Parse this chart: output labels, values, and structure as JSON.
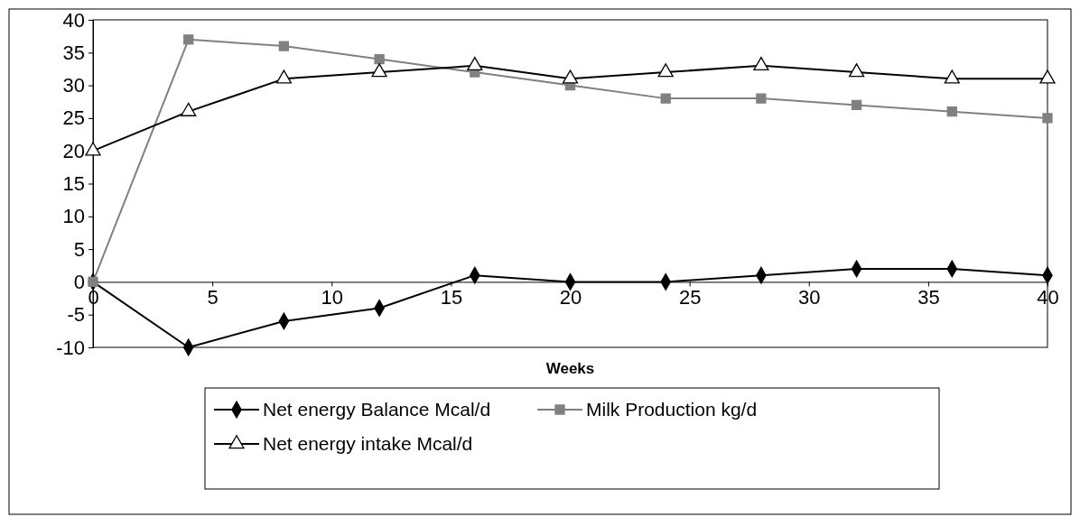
{
  "chart_data": {
    "type": "line",
    "xlabel": "Weeks",
    "x": [
      0,
      4,
      8,
      12,
      16,
      20,
      24,
      28,
      32,
      36,
      40
    ],
    "xlim": [
      0,
      40
    ],
    "xticks": [
      0,
      5,
      10,
      15,
      20,
      25,
      30,
      35,
      40
    ],
    "ylim": [
      -10,
      40
    ],
    "yticks": [
      -10,
      -5,
      0,
      5,
      10,
      15,
      20,
      25,
      30,
      35,
      40
    ],
    "grid": false,
    "legend": "bottom",
    "series": [
      {
        "name": "Net energy Balance Mcal/d",
        "color": "#000000",
        "marker": "diamond",
        "values": [
          0,
          -10,
          -6,
          -4,
          1,
          0,
          0,
          1,
          2,
          2,
          1
        ]
      },
      {
        "name": "Milk Production kg/d",
        "color": "#808080",
        "marker": "square",
        "values": [
          0,
          37,
          36,
          34,
          32,
          30,
          28,
          28,
          27,
          26,
          25
        ]
      },
      {
        "name": "Net energy intake Mcal/d",
        "color": "#000000",
        "marker": "triangle",
        "values": [
          20,
          26,
          31,
          32,
          33,
          31,
          32,
          33,
          32,
          31,
          31
        ]
      }
    ]
  }
}
